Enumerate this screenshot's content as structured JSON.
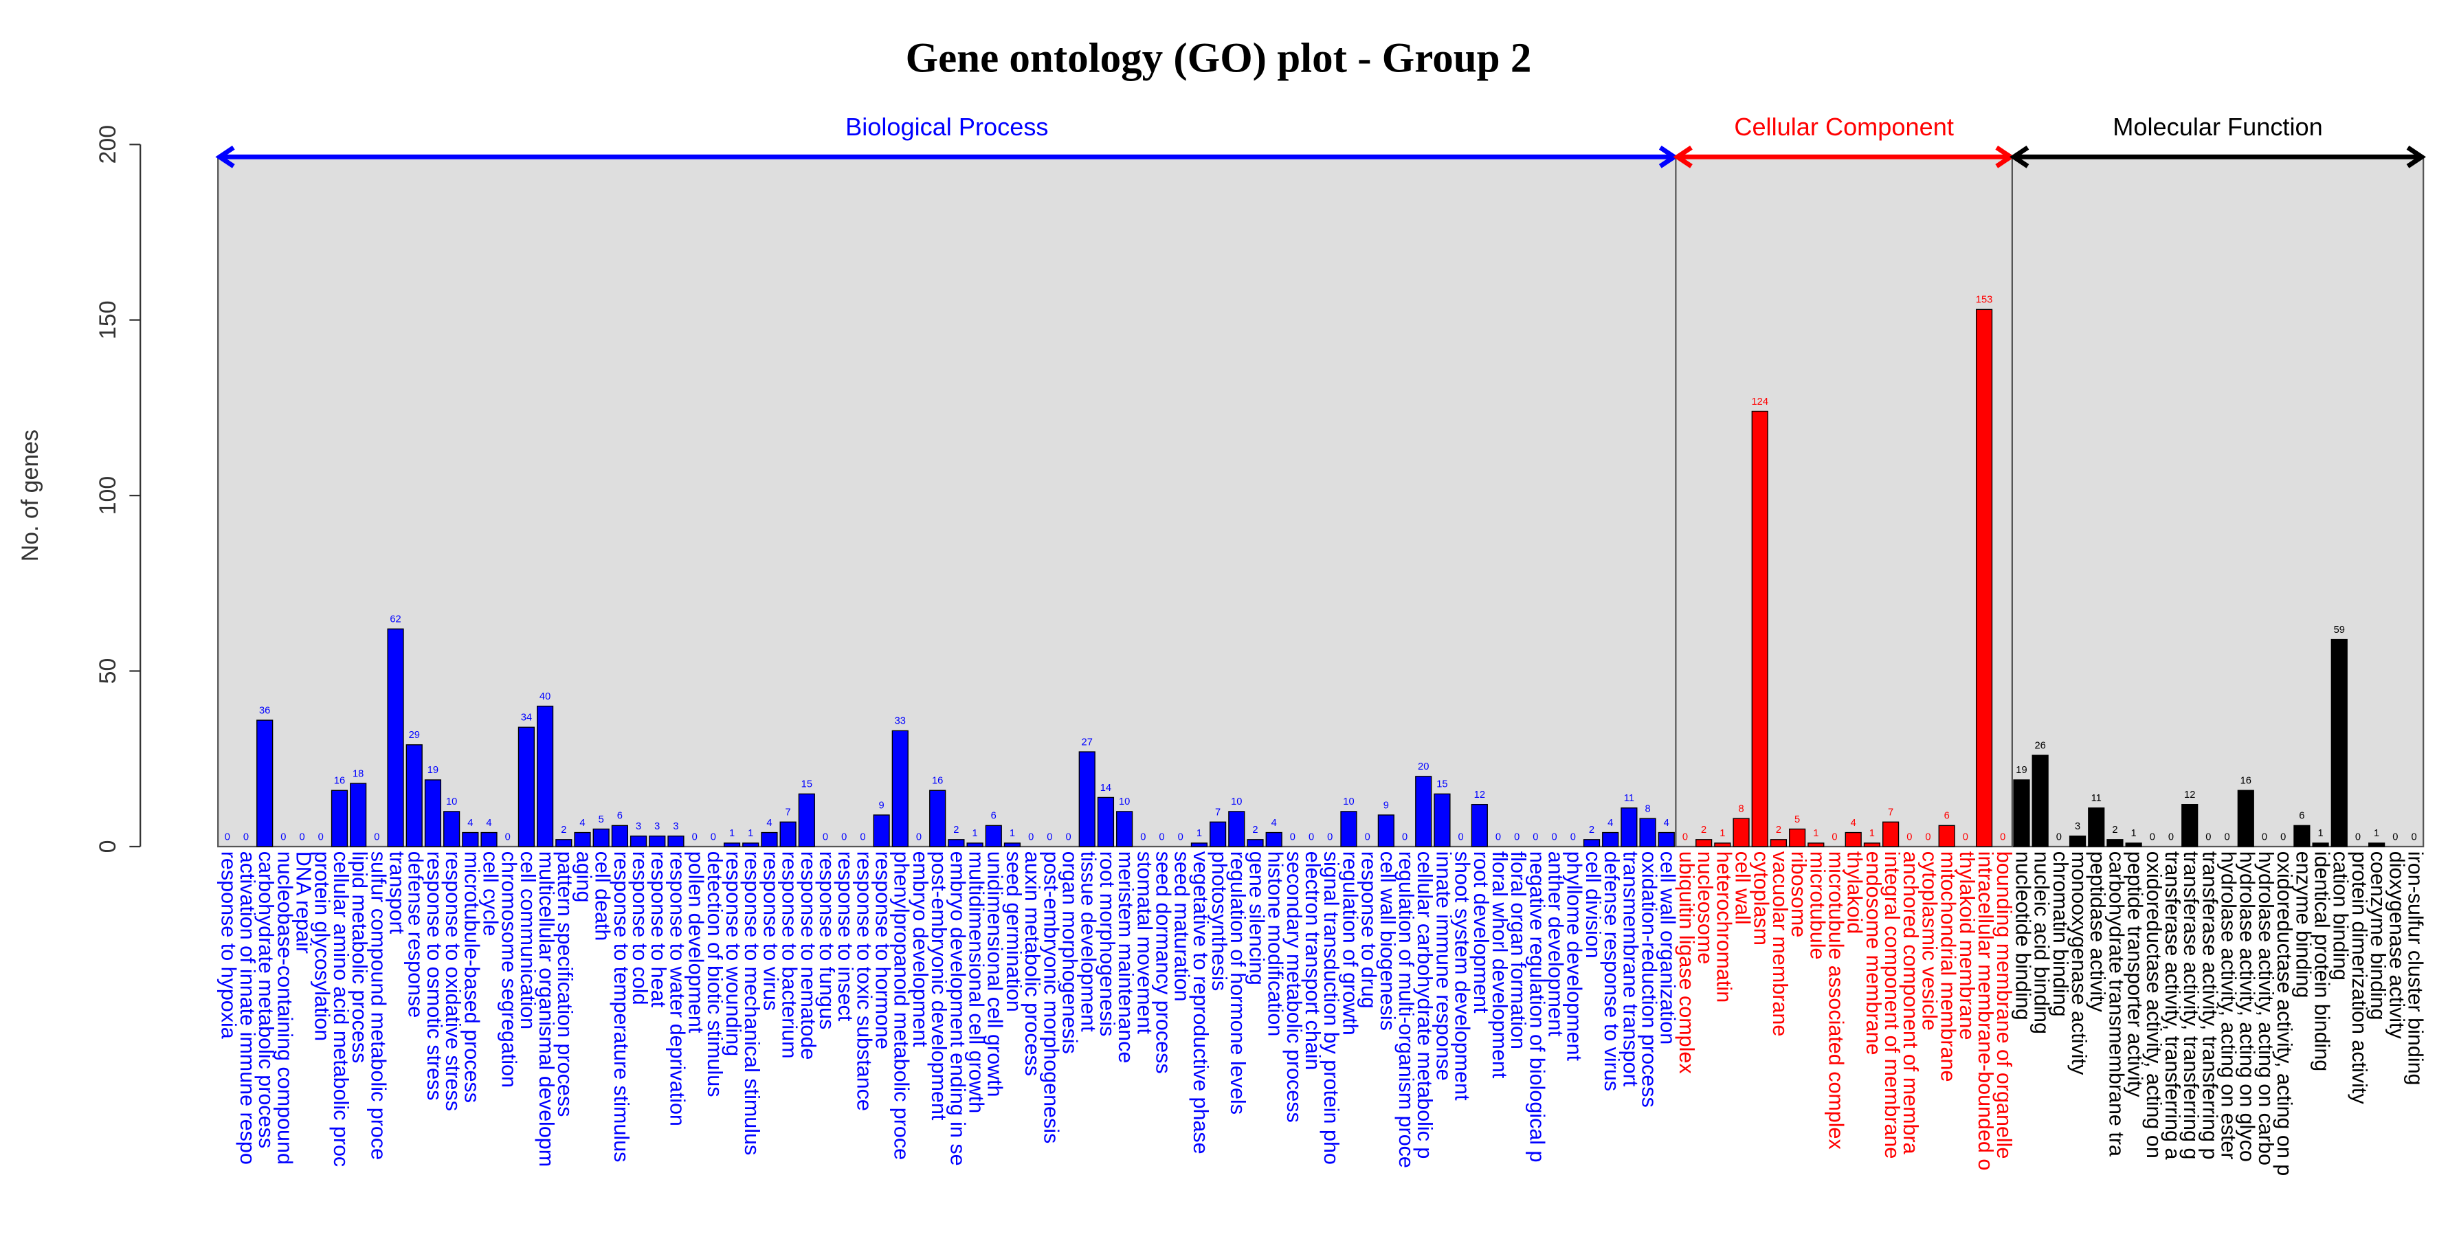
{
  "chart_data": {
    "type": "bar",
    "title": "Gene ontology (GO) plot - Group 2",
    "ylabel": "No. of genes",
    "ylim": [
      0,
      200
    ],
    "yticks": [
      0,
      50,
      100,
      150,
      200
    ],
    "groups": [
      {
        "name": "Biological Process",
        "color": "#0000ff",
        "categories": [
          "response to hypoxia",
          "activation of innate immune respo",
          "carbohydrate metabolic process",
          "nucleobase-containing compound",
          "DNA repair",
          "protein glycosylation",
          "cellular amino acid metabolic proc",
          "lipid metabolic process",
          "sulfur compound metabolic proce",
          "transport",
          "defense response",
          "response to osmotic stress",
          "response to oxidative stress",
          "microtubule-based process",
          "cell cycle",
          "chromosome segregation",
          "cell communication",
          "multicellular organismal developm",
          "pattern specification process",
          "aging",
          "cell death",
          "response to temperature stimulus",
          "response to cold",
          "response to heat",
          "response to water deprivation",
          "pollen development",
          "detection of biotic stimulus",
          "response to wounding",
          "response to mechanical stimulus",
          "response to virus",
          "response to bacterium",
          "response to nematode",
          "response to fungus",
          "response to insect",
          "response to toxic substance",
          "response to hormone",
          "phenylpropanoid metabolic proce",
          "embryo development",
          "post-embryonic development",
          "embryo development ending in se",
          "multidimensional cell growth",
          "unidimensional cell growth",
          "seed germination",
          "auxin metabolic process",
          "post-embryonic morphogenesis",
          "organ morphogenesis",
          "tissue development",
          "root morphogenesis",
          "meristem maintenance",
          "stomatal movement",
          "seed dormancy process",
          "seed maturation",
          "vegetative to reproductive phase",
          "photosynthesis",
          "regulation of hormone levels",
          "gene silencing",
          "histone modification",
          "secondary metabolic process",
          "electron transport chain",
          "signal transduction by protein pho",
          "regulation of growth",
          "response to drug",
          "cell wall biogenesis",
          "regulation of multi-organism proce",
          "cellular carbohydrate metabolic p",
          "innate immune response",
          "shoot system development",
          "root development",
          "floral whorl development",
          "floral organ formation",
          "negative regulation of biological p",
          "anther development",
          "phyllome development",
          "cell division",
          "defense response to virus",
          "transmembrane transport",
          "oxidation-reduction process",
          "cell wall organization"
        ],
        "values": [
          0,
          0,
          36,
          0,
          0,
          0,
          16,
          18,
          0,
          62,
          29,
          19,
          10,
          4,
          4,
          0,
          34,
          40,
          2,
          4,
          5,
          6,
          3,
          3,
          3,
          0,
          0,
          1,
          1,
          4,
          7,
          15,
          0,
          0,
          0,
          9,
          33,
          0,
          16,
          2,
          1,
          6,
          1,
          0,
          0,
          0,
          27,
          14,
          10,
          0,
          0,
          0,
          1,
          7,
          10,
          2,
          4,
          0,
          0,
          0,
          10,
          0,
          9,
          0,
          20,
          15,
          0,
          12,
          0,
          0,
          0,
          0,
          0,
          2,
          4,
          11,
          8,
          4
        ]
      },
      {
        "name": "Cellular Component",
        "color": "#ff0000",
        "categories": [
          "ubiquitin ligase complex",
          "nucleosome",
          "heterochromatin",
          "cell wall",
          "cytoplasm",
          "vacuolar membrane",
          "ribosome",
          "microtubule",
          "microtubule associated complex",
          "thylakoid",
          "endosome membrane",
          "integral component of membrane",
          "anchored component of membra",
          "cytoplasmic vesicle",
          "mitochondrial membrane",
          "thylakoid membrane",
          "intracellular membrane-bounded o",
          "bounding membrane of organelle"
        ],
        "values": [
          0,
          2,
          1,
          8,
          124,
          2,
          5,
          1,
          0,
          4,
          1,
          7,
          0,
          0,
          6,
          0,
          153,
          0
        ]
      },
      {
        "name": "Molecular Function",
        "color": "#000000",
        "categories": [
          "nucleotide binding",
          "nucleic acid binding",
          "chromatin binding",
          "monooxygenase activity",
          "peptidase activity",
          "carbohydrate transmembrane tra",
          "peptide transporter activity",
          "oxidoreductase activity, acting on",
          "transferase activity, transferring a",
          "transferase activity, transferring g",
          "transferase activity, transferring p",
          "hydrolase activity, acting on ester",
          "hydrolase activity, acting on glyco",
          "hydrolase activity, acting on carbo",
          "oxidoreductase activity, acting on p",
          "enzyme binding",
          "identical protein binding",
          "cation binding",
          "protein dimerization activity",
          "coenzyme binding",
          "dioxygenase activity",
          "iron-sulfur cluster binding"
        ],
        "values": [
          19,
          26,
          0,
          3,
          11,
          2,
          1,
          0,
          0,
          12,
          0,
          0,
          16,
          0,
          0,
          6,
          1,
          59,
          0,
          1,
          0,
          0
        ]
      }
    ]
  }
}
